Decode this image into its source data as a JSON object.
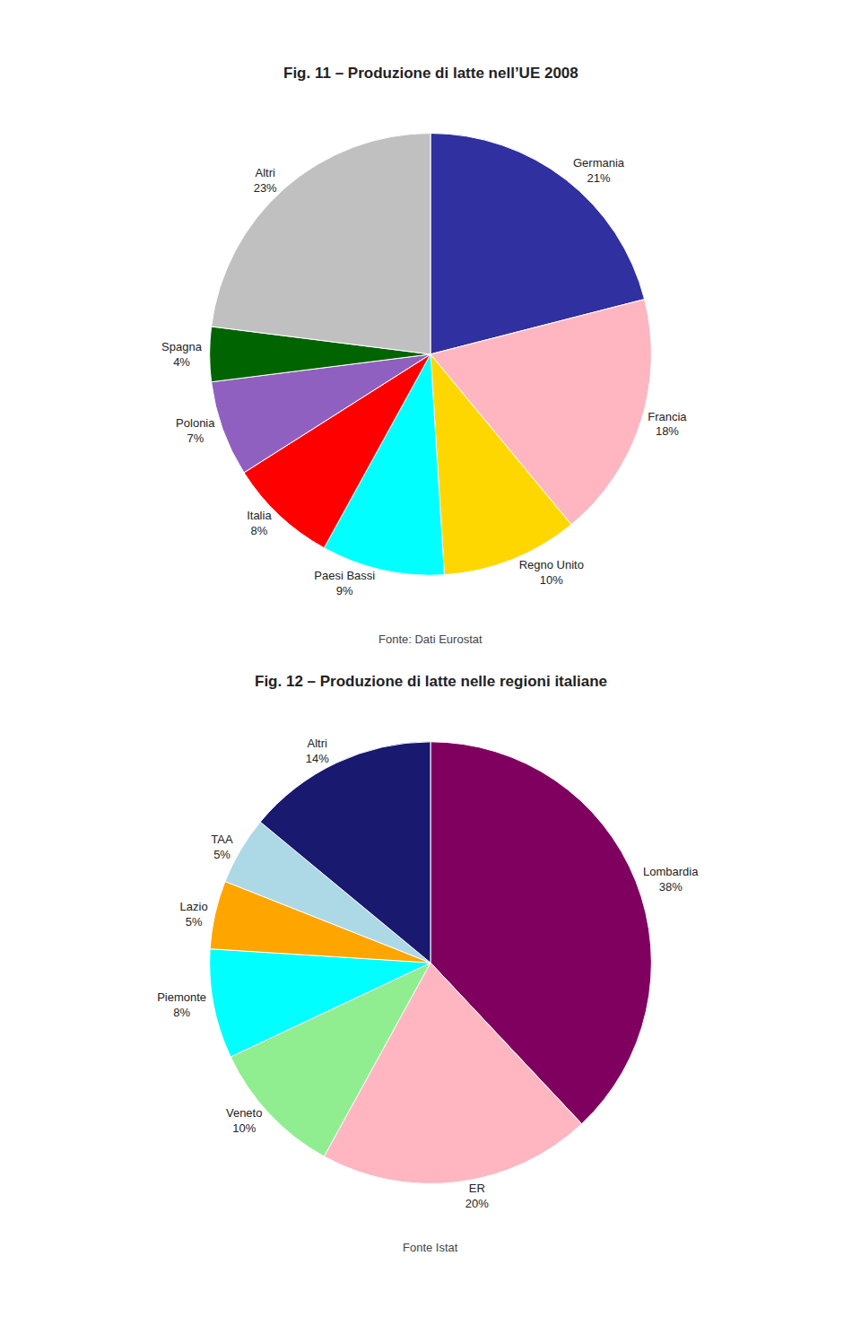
{
  "chart_data": [
    {
      "type": "pie",
      "title": "Fig. 11 – Produzione di latte nell’UE 2008",
      "categories": [
        "Germania",
        "Francia",
        "Regno Unito",
        "Paesi Bassi",
        "Italia",
        "Polonia",
        "Spagna",
        "Altri"
      ],
      "values": [
        21,
        18,
        10,
        9,
        8,
        7,
        4,
        23
      ],
      "value_labels": [
        "Germania\n21%",
        "Francia\n18%",
        "Regno Unito\n10%",
        "Paesi Bassi\n9%",
        "Italia\n8%",
        "Polonia\n7%",
        "Spagna\n4%",
        "Altri\n23%"
      ],
      "colors": [
        "#3030A0",
        "#FFB6C1",
        "#FFD700",
        "#00FFFF",
        "#FF0000",
        "#9060C0",
        "#006400",
        "#C0C0C0"
      ],
      "data_labels": true,
      "annotations": [
        "Fonte: Dati Eurostat"
      ]
    },
    {
      "type": "pie",
      "title": "Fig. 12 – Produzione di latte nelle regioni italiane",
      "categories": [
        "Lombardia",
        "ER",
        "Veneto",
        "Piemonte",
        "Lazio",
        "TAA",
        "Altri"
      ],
      "values": [
        38,
        20,
        10,
        8,
        5,
        5,
        14
      ],
      "value_labels": [
        "Lombardia\n38%",
        "ER\n20%",
        "Veneto\n10%",
        "Piemonte\n8%",
        "Lazio\n5%",
        "TAA\n5%",
        "Altri\n14%"
      ],
      "colors": [
        "#800060",
        "#FFB6C1",
        "#90EE90",
        "#00FFFF",
        "#FFA500",
        "#ADD8E6",
        "#191970"
      ],
      "data_labels": true,
      "annotations": [
        "Fonte Istat"
      ]
    }
  ]
}
